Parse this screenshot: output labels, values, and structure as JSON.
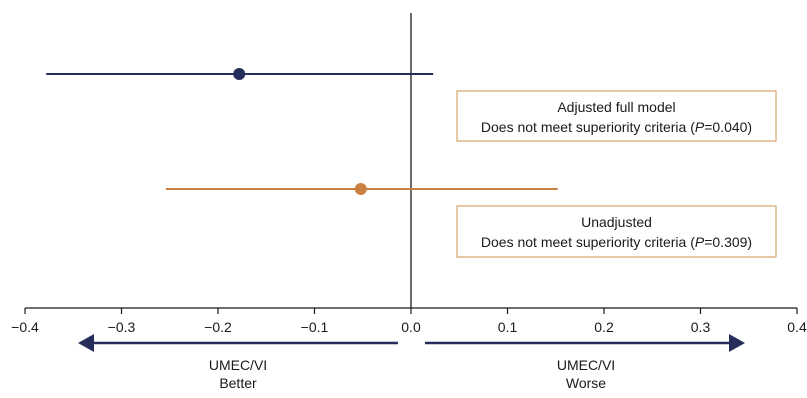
{
  "chart_data": {
    "type": "forest",
    "xlim": [
      -0.4,
      0.4
    ],
    "ticks": [
      {
        "value": -0.4,
        "label": "−0.4"
      },
      {
        "value": -0.3,
        "label": "−0.3"
      },
      {
        "value": -0.2,
        "label": "−0.2"
      },
      {
        "value": -0.1,
        "label": "−0.1"
      },
      {
        "value": 0.0,
        "label": "0.0"
      },
      {
        "value": 0.1,
        "label": "0.1"
      },
      {
        "value": 0.2,
        "label": "0.2"
      },
      {
        "value": 0.3,
        "label": "0.3"
      },
      {
        "value": 0.4,
        "label": "0.4"
      }
    ],
    "reference_line": 0,
    "series": [
      {
        "estimate": -0.178,
        "ci": [
          -0.378,
          0.023
        ],
        "color": "#272d5b",
        "label_title": "Adjusted full model",
        "label_prefix": "Does not meet superiority criteria (",
        "label_p_symbol": "P",
        "label_p_value": "=0.040)"
      },
      {
        "estimate": -0.052,
        "ci": [
          -0.254,
          0.152
        ],
        "color": "#c98040",
        "label_title": "Unadjusted",
        "label_prefix": "Does not meet superiority criteria (",
        "label_p_symbol": "P",
        "label_p_value": "=0.309)"
      }
    ],
    "box_border_color": "#d9a46c",
    "arrow_color": "#272d5b",
    "direction_labels": {
      "left": {
        "line1": "UMEC/VI",
        "line2": "Better"
      },
      "right": {
        "line1": "UMEC/VI",
        "line2": "Worse"
      }
    }
  }
}
